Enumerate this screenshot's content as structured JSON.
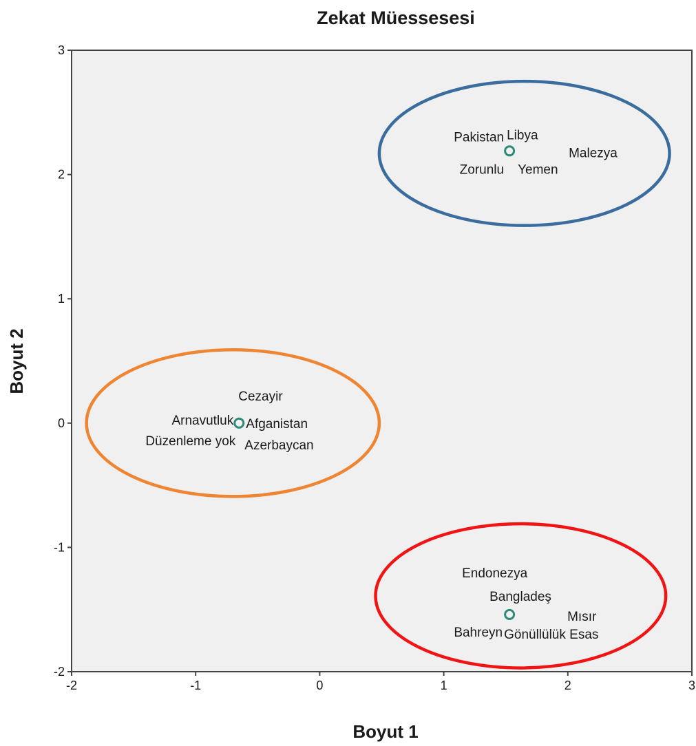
{
  "chart_data": {
    "type": "scatter",
    "title": "Zekat Müessesesi",
    "xlabel": "Boyut 1",
    "ylabel": "Boyut 2",
    "xlim": [
      -2,
      3
    ],
    "ylim": [
      -2,
      3
    ],
    "xticks": [
      -2,
      -1,
      0,
      1,
      2,
      3
    ],
    "yticks": [
      -2,
      -1,
      0,
      1,
      2,
      3
    ],
    "xtick_labels": [
      "-2",
      "-1",
      "0",
      "1",
      "2",
      "3"
    ],
    "ytick_labels": [
      "-2",
      "-1",
      "0",
      "1",
      "2",
      "3"
    ],
    "grid": false,
    "plot_background": "#f0f0f0",
    "frame_color": "#444444",
    "marker_color": "#2e8b7a",
    "points": [
      {
        "x": -0.65,
        "y": 0.0
      },
      {
        "x": 1.53,
        "y": 2.19
      },
      {
        "x": 1.53,
        "y": -1.54
      }
    ],
    "labels": [
      {
        "text": "Pakistan",
        "x": 1.53,
        "y": 2.19,
        "dx": -8,
        "dy": -14,
        "anchor": "end"
      },
      {
        "text": "Libya",
        "x": 1.53,
        "y": 2.19,
        "dx": -4,
        "dy": -17,
        "anchor": "start"
      },
      {
        "text": "Malezya",
        "x": 1.53,
        "y": 2.19,
        "dx": 86,
        "dy": 9,
        "anchor": "start"
      },
      {
        "text": "Zorunlu",
        "x": 1.53,
        "y": 2.19,
        "dx": -8,
        "dy": 33,
        "anchor": "end"
      },
      {
        "text": "Yemen",
        "x": 1.53,
        "y": 2.19,
        "dx": 12,
        "dy": 33,
        "anchor": "start"
      },
      {
        "text": "Cezayir",
        "x": -0.65,
        "y": 0.0,
        "dx": -1,
        "dy": -33,
        "anchor": "start"
      },
      {
        "text": "Arnavutluk",
        "x": -0.65,
        "y": 0.0,
        "dx": -8,
        "dy": 2,
        "anchor": "end"
      },
      {
        "text": "Afganistan",
        "x": -0.65,
        "y": 0.0,
        "dx": 10,
        "dy": 7,
        "anchor": "start"
      },
      {
        "text": "Düzenleme yok",
        "x": -0.65,
        "y": 0.0,
        "dx": -5,
        "dy": 32,
        "anchor": "end"
      },
      {
        "text": "Azerbaycan",
        "x": -0.65,
        "y": 0.0,
        "dx": 8,
        "dy": 38,
        "anchor": "start"
      },
      {
        "text": "Endonezya",
        "x": 1.53,
        "y": -1.54,
        "dx": -69,
        "dy": -54,
        "anchor": "start"
      },
      {
        "text": "Bangladeş",
        "x": 1.53,
        "y": -1.54,
        "dx": -29,
        "dy": -20,
        "anchor": "start"
      },
      {
        "text": "Mısır",
        "x": 1.53,
        "y": -1.54,
        "dx": 84,
        "dy": 9,
        "anchor": "start"
      },
      {
        "text": "Bahreyn",
        "x": 1.53,
        "y": -1.54,
        "dx": -10,
        "dy": 32,
        "anchor": "end"
      },
      {
        "text": "Gönüllülük Esas",
        "x": 1.53,
        "y": -1.54,
        "dx": -8,
        "dy": 35,
        "anchor": "start"
      }
    ],
    "clusters": [
      {
        "color": "#3a6d9e",
        "cx": 1.65,
        "cy": 2.17,
        "rx": 1.17,
        "ry": 0.58
      },
      {
        "color": "#ee8533",
        "cx": -0.7,
        "cy": 0.0,
        "rx": 1.18,
        "ry": 0.59
      },
      {
        "color": "#f01414",
        "cx": 1.62,
        "cy": -1.39,
        "rx": 1.17,
        "ry": 0.58
      }
    ]
  }
}
